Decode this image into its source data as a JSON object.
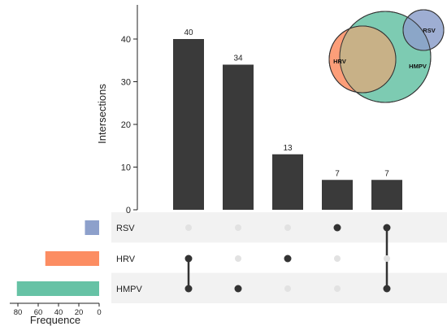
{
  "chart_data": {
    "type": "upset",
    "intersections": {
      "ylabel": "Intersections",
      "ylim": [
        0,
        48
      ],
      "yticks": [
        0,
        10,
        20,
        30,
        40
      ],
      "values": [
        40,
        34,
        13,
        7,
        7
      ],
      "labels": [
        "40",
        "34",
        "13",
        "7",
        "7"
      ],
      "bar_color": "#3a3a3a",
      "members": [
        [
          "HRV",
          "HMPV"
        ],
        [
          "HMPV"
        ],
        [
          "HRV"
        ],
        [
          "RSV"
        ],
        [
          "RSV",
          "HMPV"
        ]
      ]
    },
    "sets": {
      "names": [
        "RSV",
        "HRV",
        "HMPV"
      ],
      "sizes": [
        14,
        53,
        81
      ],
      "colors": [
        "#8da0cb",
        "#fc8d62",
        "#66c2a5"
      ],
      "xlabel": "Frequence",
      "xticks": [
        80,
        60,
        40,
        20,
        0
      ],
      "xlim": [
        0,
        88
      ]
    },
    "venn": {
      "labels": [
        "RSV",
        "HRV",
        "HMPV"
      ],
      "colors": [
        "#8da0cb",
        "#fc8d62",
        "#66c2a5"
      ]
    },
    "matrix": {
      "dot_on": "#333333",
      "dot_off": "#e2e2e2",
      "band_color": "#f2f2f2"
    }
  }
}
